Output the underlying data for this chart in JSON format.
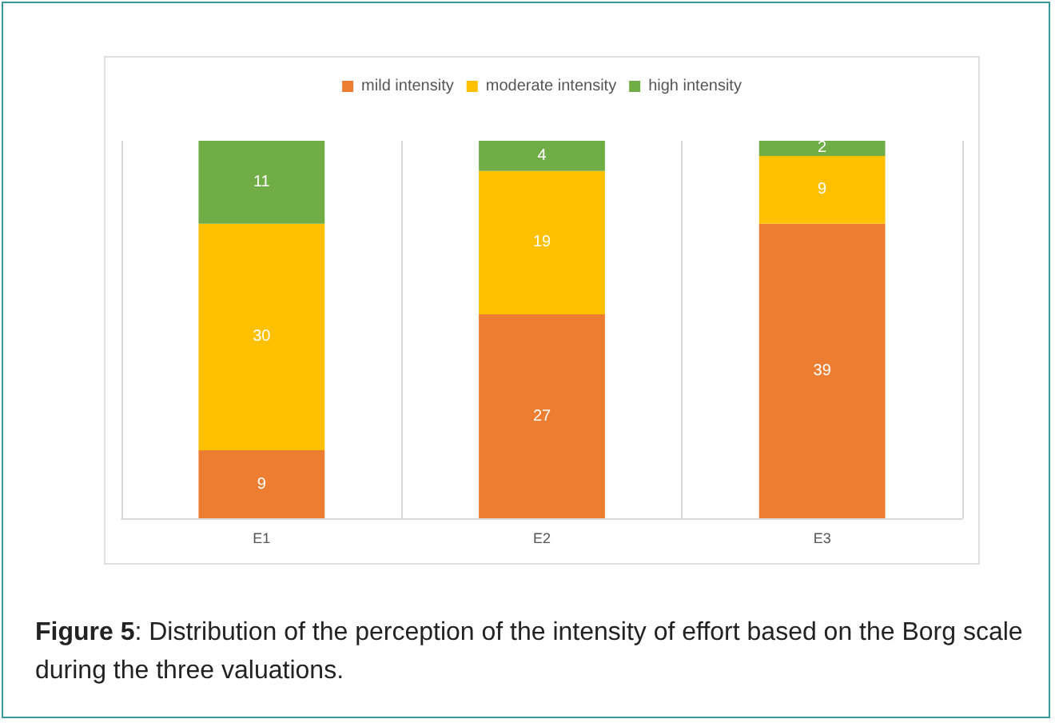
{
  "chart_data": {
    "type": "bar",
    "categories": [
      "E1",
      "E2",
      "E3"
    ],
    "series": [
      {
        "name": "mild intensity",
        "color": "#ed7d31",
        "values": [
          9,
          27,
          39
        ]
      },
      {
        "name": "moderate intensity",
        "color": "#ffc000",
        "values": [
          30,
          19,
          9
        ]
      },
      {
        "name": "high intensity",
        "color": "#70ad47",
        "values": [
          11,
          4,
          2
        ]
      }
    ],
    "stacked": true,
    "data_labels": true,
    "legend": "top",
    "grid": "x",
    "annotations": [
      "Figure 5: Distribution of the perception of the intensity of effort based on the Borg scale during the three valuations."
    ]
  }
}
